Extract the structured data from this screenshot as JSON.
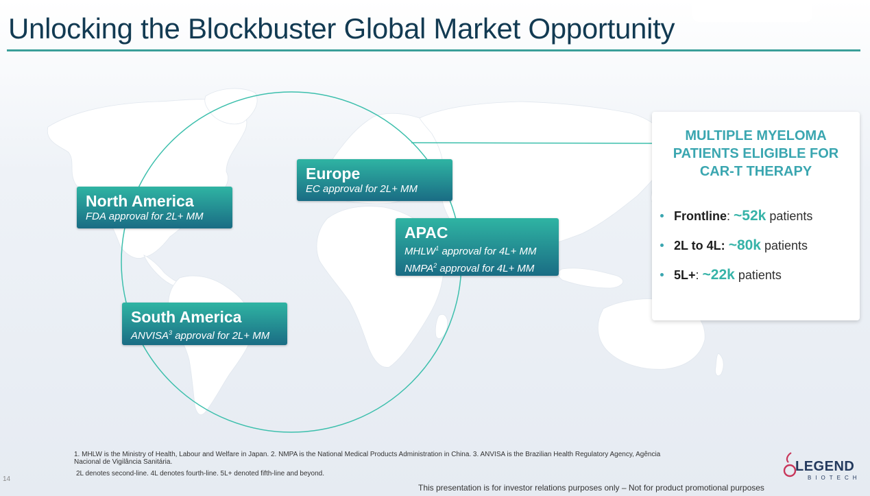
{
  "slide": {
    "title": "Unlocking the Blockbuster Global Market Opportunity",
    "page_number": "14"
  },
  "regions": {
    "north_america": {
      "name": "North America",
      "lines": [
        "FDA approval for 2L+  MM"
      ]
    },
    "europe": {
      "name": "Europe",
      "lines": [
        "EC approval for 2L+ MM"
      ]
    },
    "apac": {
      "name": "APAC",
      "lines": [
        {
          "pre": "MHLW",
          "sup": "1",
          "post": " approval for 4L+ MM"
        },
        {
          "pre": "NMPA",
          "sup": "2",
          "post": " approval for 4L+ MM"
        }
      ]
    },
    "south_america": {
      "name": "South America",
      "lines": [
        {
          "pre": "ANVISA",
          "sup": "3",
          "post": " approval for 2L+ MM"
        }
      ]
    }
  },
  "panel": {
    "heading": [
      "MULTIPLE MYELOMA",
      "PATIENTS ELIGIBLE FOR",
      "CAR-T THERAPY"
    ],
    "stats": [
      {
        "label": "Frontline",
        "sep": ": ",
        "value": "~52k",
        "suffix": " patients"
      },
      {
        "label": "2L to 4L:",
        "sep": " ",
        "value": "~80k",
        "suffix": " patients"
      },
      {
        "label": "5L+",
        "sep": ": ",
        "value": "~22k",
        "suffix": " patients"
      }
    ]
  },
  "footnotes": {
    "line1": "1. MHLW is the Ministry of Health, Labour and Welfare in Japan. 2. NMPA is the National Medical Products Administration in China. 3. ANVISA is the Brazilian Health Regulatory Agency, Agência",
    "line2": "Nacional de Vigilância Sanitária.",
    "line3": "2L denotes second-line. 4L denotes fourth-line. 5L+ denoted fifth-line and beyond."
  },
  "disclaimer": "This presentation is for investor relations purposes only – Not for product promotional purposes",
  "logo": {
    "name": "LEGEND",
    "sub": "BIOTECH"
  },
  "colors": {
    "accent": "#36b3a8",
    "title": "#123a52",
    "box_top": "#2fb4a3",
    "box_bottom": "#1a6c84",
    "map": "#ffffff"
  }
}
